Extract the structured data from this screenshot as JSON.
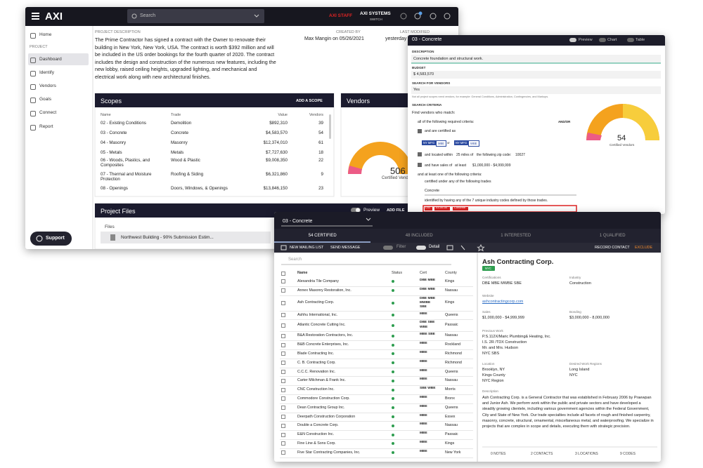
{
  "app": {
    "logo": "AXI",
    "search_placeholder": "Search",
    "staff_label": "AXI STAFF",
    "org_name": "AXI SYSTEMS",
    "org_action": "SWITCH"
  },
  "sidebar": {
    "items": [
      "Home",
      "PROJECT",
      "Dashboard",
      "Identify",
      "Vendors",
      "Goals",
      "Connect",
      "Report"
    ],
    "support": "Support"
  },
  "project": {
    "description_label": "PROJECT DESCRIPTION",
    "description": "The Prime Contractor has signed a contract with the Owner to renovate their building in New York, New York, USA. The contract is worth $392 million and will be included in the US order bookings for the fourth quarter of 2020. The contract includes the design and construction of the numerous new features, including the new lobby, raised ceiling heights, upgraded lighting, and mechanical and electrical work along with new architectural finishes.",
    "created_by_label": "CREATED BY",
    "created_by": "Max Mangin on 05/26/2021",
    "modified_label": "LAST MODIFIED",
    "modified": "yesterday at"
  },
  "scopes": {
    "title": "Scopes",
    "action": "ADD A SCOPE",
    "columns": [
      "Name",
      "Trade",
      "Value",
      "Vendors"
    ],
    "rows": [
      [
        "02 - Existing Conditions",
        "Demolition",
        "$892,310",
        "39"
      ],
      [
        "03 - Concrete",
        "Concrete",
        "$4,583,570",
        "54"
      ],
      [
        "04 - Masonry",
        "Masonry",
        "$12,374,010",
        "61"
      ],
      [
        "05 - Metals",
        "Metals",
        "$7,727,630",
        "18"
      ],
      [
        "06 - Woods, Plastics, and Composites",
        "Wood & Plastic",
        "$9,008,350",
        "22"
      ],
      [
        "07 - Thermal and Moisture Protection",
        "Roofing & Siding",
        "$6,321,860",
        "9"
      ],
      [
        "08 - Openings",
        "Doors, Windows, & Openings",
        "$13,846,150",
        "23"
      ]
    ]
  },
  "vendors_card": {
    "title": "Vendors",
    "count": "506",
    "caption": "Certified Vendors"
  },
  "files": {
    "title": "Project Files",
    "preview": "Preview",
    "action": "ADD FILE",
    "files_label": "Files",
    "items": [
      "Northwest Building - 90% Submission Estim..."
    ]
  },
  "scope_panel": {
    "title": "03 - Concrete",
    "toggles": [
      "Preview",
      "Chart",
      "Table"
    ],
    "description_label": "DESCRIPTION",
    "description": "Concrete foundation and structural work.",
    "budget_label": "BUDGET",
    "budget": "$ 4,583,570",
    "search_label": "SEARCH FOR VENDORS",
    "search_value": "Yes",
    "search_hint": "Not all project scopes need vendors, for example: General Conditions, Administration, Contingencies, and Markups.",
    "criteria_label": "SEARCH CRITERIA",
    "criteria_intro": "Find vendors who match:",
    "all_criteria": "all of the following required criteria:",
    "andor": "AND/OR",
    "certified_as": "and are certified as",
    "badges": [
      "NY MFG",
      "MBE",
      "or",
      "NY MFG",
      "WBE"
    ],
    "located": [
      "and located within",
      "25 miles of",
      "the following zip code:",
      "10027"
    ],
    "sales": [
      "and have sales of",
      "at least",
      "$1,000,000 - $4,999,999"
    ],
    "at_least_one": "and at least one of the following criteria:",
    "trades_line": "certified under any of the following trades",
    "trade": "Concrete",
    "codes_line": "identified by having any of the 7 unique industry codes defined by those trades.",
    "code": [
      "CSI",
      "03-00-00",
      "Concrete"
    ],
    "count": "54",
    "caption": "Certified Vendors"
  },
  "vendor_list": {
    "scope": "03 - Concrete",
    "tabs": [
      "54 CERTIFIED",
      "48 INCLUDED",
      "1 INTERESTED",
      "1 QUALIFIED"
    ],
    "toolbar": [
      "NEW MAILING LIST",
      "SEND MESSAGE"
    ],
    "filter": "Filter",
    "detail": "Detail",
    "record_contact": "RECORD CONTACT",
    "exclude": "EXCLUDE",
    "search": "Search",
    "columns": [
      "Name",
      "Status",
      "Cert",
      "County"
    ],
    "rows": [
      [
        "Alexandria Tile Company",
        "DBE MBE",
        "Kings"
      ],
      [
        "Annex Masonry Restoration, Inc.",
        "DBE MBE",
        "Nassau"
      ],
      [
        "Ash Contracting Corp.",
        "DBE MBE MWBE SBE",
        "Kings"
      ],
      [
        "Ashhu International, Inc.",
        "MBE",
        "Queens"
      ],
      [
        "Atlantic Concrete Cutting Inc.",
        "DBE SBE WBE",
        "Passaic"
      ],
      [
        "B&A Restoration Contractors, Inc.",
        "MBE SBE",
        "Nassau"
      ],
      [
        "B&B Concrete Enterprises, Inc.",
        "MBE",
        "Rockland"
      ],
      [
        "Blade Contracting Inc.",
        "MBE",
        "Richmond"
      ],
      [
        "C. B. Contracting Corp.",
        "MBE",
        "Richmond"
      ],
      [
        "C.C.C. Renovation Inc.",
        "MBE",
        "Queens"
      ],
      [
        "Carter Milchman & Frank Inc.",
        "MBE",
        "Nassau"
      ],
      [
        "CNC Construction Inc.",
        "SBE WBE",
        "Morris"
      ],
      [
        "Commodore Construction Corp.",
        "MBE",
        "Bronx"
      ],
      [
        "Dean Contracting Group Inc.",
        "MBE",
        "Queens"
      ],
      [
        "Deerpath Construction Corporation",
        "MBE",
        "Essex"
      ],
      [
        "Double a Concrete Corp.",
        "MBE",
        "Nassau"
      ],
      [
        "E&N Construction Inc.",
        "MBE",
        "Passaic"
      ],
      [
        "Fine Line & Sons Corp.",
        "MBE",
        "Kings"
      ],
      [
        "Five Star Contracting Companies, Inc.",
        "MBE",
        "New York"
      ]
    ]
  },
  "vendor_detail": {
    "name": "Ash Contracting Corp.",
    "badge": "NYC",
    "fields": [
      {
        "label": "Certifications",
        "values": [
          "DBE MBE MWBE SBE"
        ]
      },
      {
        "label": "Industry",
        "values": [
          "Construction"
        ]
      },
      {
        "label": "Website",
        "values": [
          "ashcontractingcorp.com"
        ]
      },
      {
        "label": "Sales",
        "values": [
          "$1,000,000 - $4,999,999"
        ]
      },
      {
        "label": "Bonding",
        "values": [
          "$3,000,000 - 8,000,000"
        ]
      },
      {
        "label": "Previous Work",
        "values": [
          "P.S.112X/Maric Plumbing& Heating, Inc.",
          "I.S. 2R /TDX Construction",
          "Mr. and Mrs. Hudson",
          "NYC SBS"
        ]
      },
      {
        "label": "Location",
        "values": [
          "Brooklyn, NY",
          "Kings County",
          "NYC Region"
        ]
      },
      {
        "label": "Desired Work Regions",
        "values": [
          "Long Island",
          "NYC"
        ]
      }
    ],
    "description_label": "Description",
    "description": "Ash Contracting Corp. is a General Contractor that was established in February 2006 by Praewpan and Junior Ash. We perform work within the public and private sectors and have developed a steadily growing clientele, including various government agencies within the Federal Government, City and State of New York. Our trade specialties include all facets of rough and finished carpentry, masonry, concrete, structural, ornamental, miscellaneous metal, and waterproofing. We specialize in projects that are complex in scope and details, executing them with strategic precision.",
    "footer": [
      "0 NOTES",
      "2 CONTACTS",
      "3 LOCATIONS",
      "9 CODES"
    ]
  }
}
